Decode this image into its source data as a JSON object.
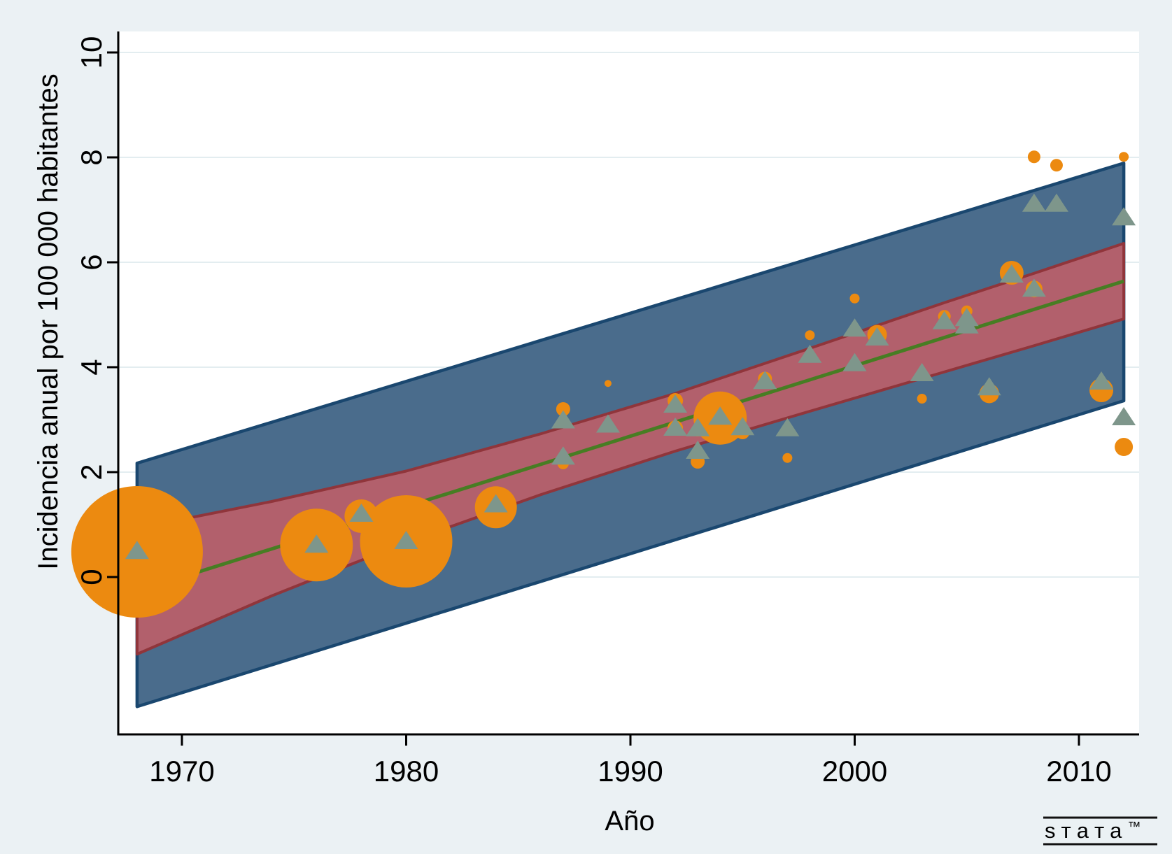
{
  "figure": {
    "background": "#ebf1f4",
    "plot_background": "#ffffff"
  },
  "colors": {
    "plot_bg": "#ffffff",
    "grid": "#e3edf0",
    "axis": "#000000",
    "prediction_fill": "#4a6c8c",
    "prediction_edge": "#1a476f",
    "confidence_fill": "#b2606c",
    "confidence_edge": "#90353b",
    "regression": "#477d23",
    "bubble": "#ec8a10",
    "triangle": "#7e968b",
    "logo": "#111111"
  },
  "chart_data": {
    "type": "scatter",
    "title": "",
    "xlabel": "Año",
    "ylabel": "Incidencia anual por 100 000 habitantes",
    "xlim": [
      1967.2,
      2012.8
    ],
    "ylim": [
      -3.0,
      10.4
    ],
    "x_ticks": [
      1970,
      1980,
      1990,
      2000,
      2010
    ],
    "y_ticks": [
      0,
      2,
      4,
      6,
      8,
      10
    ],
    "grid": "horizontal-only",
    "legend": "none",
    "regression_line": {
      "x": [
        1968,
        2012
      ],
      "y": [
        -0.27,
        5.64
      ]
    },
    "confidence_band": {
      "x": [
        1968,
        1974,
        1980,
        1986,
        1992,
        1998,
        2004,
        2008,
        2012
      ],
      "upper": [
        0.93,
        1.44,
        2.02,
        2.73,
        3.5,
        4.36,
        5.23,
        5.79,
        6.36
      ],
      "lower": [
        -1.47,
        -0.36,
        0.66,
        1.57,
        2.4,
        3.16,
        3.91,
        4.41,
        4.92
      ]
    },
    "prediction_band": {
      "x": [
        1968,
        2012
      ],
      "upper": [
        2.17,
        7.89
      ],
      "lower": [
        -2.47,
        3.36
      ]
    },
    "series": [
      {
        "name": "observed-incidence-weighted-bubbles",
        "marker": "circle",
        "points": [
          {
            "year": 1968,
            "value": 0.48,
            "r": 94
          },
          {
            "year": 1976,
            "value": 0.61,
            "r": 52
          },
          {
            "year": 1978,
            "value": 1.16,
            "r": 24
          },
          {
            "year": 1980,
            "value": 0.68,
            "r": 66
          },
          {
            "year": 1984,
            "value": 1.33,
            "r": 30
          },
          {
            "year": 1987,
            "value": 3.2,
            "r": 10
          },
          {
            "year": 1987,
            "value": 2.16,
            "r": 8
          },
          {
            "year": 1989,
            "value": 3.69,
            "r": 5
          },
          {
            "year": 1992,
            "value": 3.36,
            "r": 11
          },
          {
            "year": 1992,
            "value": 2.84,
            "r": 11
          },
          {
            "year": 1993,
            "value": 2.8,
            "r": 9
          },
          {
            "year": 1993,
            "value": 2.2,
            "r": 10
          },
          {
            "year": 1994,
            "value": 3.03,
            "r": 38
          },
          {
            "year": 1995,
            "value": 2.76,
            "r": 10
          },
          {
            "year": 1996,
            "value": 3.78,
            "r": 10
          },
          {
            "year": 1997,
            "value": 2.27,
            "r": 7
          },
          {
            "year": 1998,
            "value": 4.61,
            "r": 7
          },
          {
            "year": 2000,
            "value": 5.31,
            "r": 7
          },
          {
            "year": 2000,
            "value": 4.12,
            "r": 6
          },
          {
            "year": 2001,
            "value": 4.62,
            "r": 14
          },
          {
            "year": 2003,
            "value": 3.4,
            "r": 7
          },
          {
            "year": 2004,
            "value": 4.97,
            "r": 9
          },
          {
            "year": 2005,
            "value": 5.07,
            "r": 8
          },
          {
            "year": 2005,
            "value": 4.83,
            "r": 10
          },
          {
            "year": 2006,
            "value": 3.5,
            "r": 14
          },
          {
            "year": 2007,
            "value": 5.8,
            "r": 17
          },
          {
            "year": 2008,
            "value": 5.49,
            "r": 12
          },
          {
            "year": 2008,
            "value": 8.01,
            "r": 9
          },
          {
            "year": 2009,
            "value": 7.85,
            "r": 9
          },
          {
            "year": 2011,
            "value": 3.56,
            "r": 17
          },
          {
            "year": 2012,
            "value": 8.01,
            "r": 7
          },
          {
            "year": 2012,
            "value": 2.48,
            "r": 13
          }
        ]
      },
      {
        "name": "model-predicted-triangles",
        "marker": "triangle",
        "points": [
          {
            "year": 1968,
            "value": 0.49
          },
          {
            "year": 1976,
            "value": 0.61
          },
          {
            "year": 1978,
            "value": 1.2
          },
          {
            "year": 1980,
            "value": 0.68
          },
          {
            "year": 1984,
            "value": 1.38
          },
          {
            "year": 1987,
            "value": 2.98
          },
          {
            "year": 1987,
            "value": 2.29
          },
          {
            "year": 1989,
            "value": 2.9
          },
          {
            "year": 1992,
            "value": 3.28
          },
          {
            "year": 1992,
            "value": 2.84
          },
          {
            "year": 1993,
            "value": 2.83
          },
          {
            "year": 1993,
            "value": 2.4
          },
          {
            "year": 1994,
            "value": 3.05
          },
          {
            "year": 1995,
            "value": 2.85
          },
          {
            "year": 1996,
            "value": 3.73
          },
          {
            "year": 1997,
            "value": 2.83
          },
          {
            "year": 1998,
            "value": 4.23
          },
          {
            "year": 2000,
            "value": 4.73
          },
          {
            "year": 2000,
            "value": 4.07
          },
          {
            "year": 2001,
            "value": 4.56
          },
          {
            "year": 2003,
            "value": 3.88
          },
          {
            "year": 2004,
            "value": 4.87
          },
          {
            "year": 2005,
            "value": 4.93
          },
          {
            "year": 2005,
            "value": 4.79
          },
          {
            "year": 2006,
            "value": 3.61
          },
          {
            "year": 2007,
            "value": 5.76
          },
          {
            "year": 2008,
            "value": 5.49
          },
          {
            "year": 2008,
            "value": 7.11
          },
          {
            "year": 2009,
            "value": 7.11
          },
          {
            "year": 2011,
            "value": 3.72
          },
          {
            "year": 2012,
            "value": 6.85
          },
          {
            "year": 2012,
            "value": 3.04
          }
        ]
      }
    ]
  },
  "branding": {
    "word": "sтaтa",
    "tm": "™"
  }
}
